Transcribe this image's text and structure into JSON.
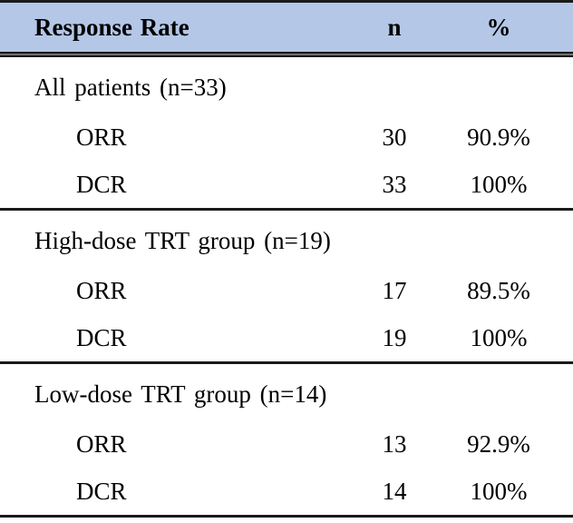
{
  "table": {
    "header": {
      "title": "Response Rate",
      "col_n": "n",
      "col_percent": "%"
    },
    "sections": [
      {
        "label": "All patients (n=33)",
        "rows": [
          {
            "name": "ORR",
            "n": "30",
            "percent": "90.9%"
          },
          {
            "name": "DCR",
            "n": "33",
            "percent": "100%"
          }
        ]
      },
      {
        "label": "High-dose TRT group (n=19)",
        "rows": [
          {
            "name": "ORR",
            "n": "17",
            "percent": "89.5%"
          },
          {
            "name": "DCR",
            "n": "19",
            "percent": "100%"
          }
        ]
      },
      {
        "label": "Low-dose TRT group (n=14)",
        "rows": [
          {
            "name": "ORR",
            "n": "13",
            "percent": "92.9%"
          },
          {
            "name": "DCR",
            "n": "14",
            "percent": "100%"
          }
        ]
      }
    ],
    "colors": {
      "header_bg": "#b4c7e7",
      "rule": "#1a1a1a"
    }
  }
}
